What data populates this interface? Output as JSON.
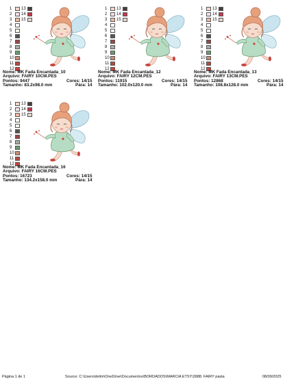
{
  "cards": [
    {
      "name": "Nome: MK Fada Encantada_10",
      "file": "Arquivo: FAIRY 10CM.PES",
      "points": "Pontos: 9447",
      "size": "Tamanho: 83.2x98.0 mm",
      "colors": "Cores: 14/15",
      "stops": "Pára: 14"
    },
    {
      "name": "Nome: MK Fada Encantada_12",
      "file": "Arquivo: FAIRY 12CM.PES",
      "points": "Pontos: 11915",
      "size": "Tamanho: 102.0x120.0 mm",
      "colors": "Cores: 14/15",
      "stops": "Pára: 14"
    },
    {
      "name": "Nome: MK Fada Encantada_13",
      "file": "Arquivo: FAIRY 13CM.PES",
      "points": "Pontos: 12868",
      "size": "Tamanho: 108.8x128.0 mm",
      "colors": "Cores: 14/15",
      "stops": "Pára: 14"
    },
    {
      "name": "Nome: MK Fada Encantada_16",
      "file": "Arquivo: FAIRY 16CM.PES",
      "points": "Pontos: 16723",
      "size": "Tamanho: 134.2x158.0 mm",
      "colors": "Cores: 14/15",
      "stops": "Pára: 14"
    }
  ],
  "legend": [
    {
      "n": "1",
      "n2": "13",
      "c": "#f2d6c8",
      "c2": "#4a3f3a"
    },
    {
      "n": "2",
      "n2": "14",
      "c": "#f3e3ea",
      "c2": "#c23a4e"
    },
    {
      "n": "3",
      "n2": "15",
      "c": "#efb9a4",
      "c2": "#e0d4cf"
    },
    {
      "n": "4",
      "c": "#ffffff"
    },
    {
      "n": "5",
      "c": "#f6f1ea"
    },
    {
      "n": "6",
      "c": "#5a5350"
    },
    {
      "n": "7",
      "c": "#9b4848"
    },
    {
      "n": "8",
      "c": "#a7aca6"
    },
    {
      "n": "9",
      "c": "#6b9c72"
    },
    {
      "n": "10",
      "c": "#c78e78"
    },
    {
      "n": "11",
      "c": "#b24a44"
    },
    {
      "n": "12",
      "c": "#c7453f"
    }
  ],
  "footer": {
    "page": "Página 1 de 1",
    "source": "Source: C:\\Users\\delim\\OneDrive\\Documentos\\BORDADOS\\MARCIA ETSY\\3988. FAIRY pasta",
    "date": "08/09/2025"
  }
}
